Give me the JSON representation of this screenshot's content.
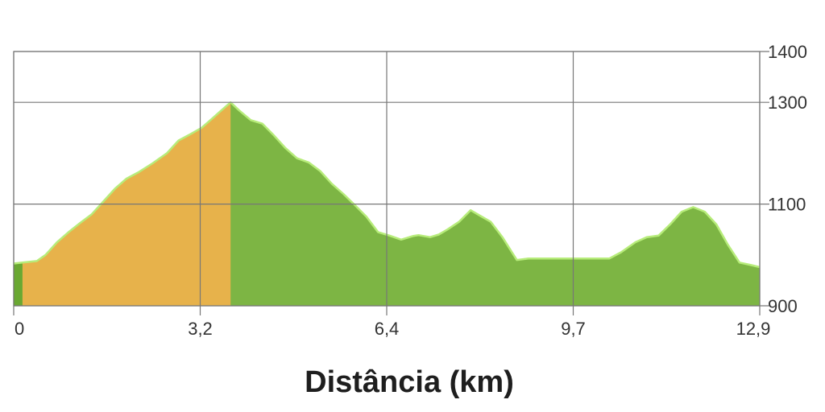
{
  "chart_data": {
    "type": "area",
    "title": "",
    "xlabel": "Distância (km)",
    "ylabel": "",
    "xlim": [
      0,
      12.9
    ],
    "ylim": [
      900,
      1400
    ],
    "x_ticks": [
      {
        "value": 0,
        "label": "0"
      },
      {
        "value": 3.225,
        "label": "3,2"
      },
      {
        "value": 6.45,
        "label": "6,4"
      },
      {
        "value": 9.675,
        "label": "9,7"
      },
      {
        "value": 12.9,
        "label": "12,9"
      }
    ],
    "y_ticks": [
      {
        "value": 900,
        "label": "900"
      },
      {
        "value": 1100,
        "label": "1100"
      },
      {
        "value": 1300,
        "label": "1300"
      },
      {
        "value": 1400,
        "label": "1400"
      }
    ],
    "grid": true,
    "colors": {
      "fill": "#7db544",
      "highlight_fill": "#e7b24b",
      "line": "#b7ec7a",
      "grid": "#777777",
      "marker": "#6aa832"
    },
    "highlight_range": [
      0.15,
      3.75
    ],
    "series": [
      {
        "x": [
          0,
          0.15,
          0.4,
          0.55,
          0.75,
          0.95,
          1.15,
          1.35,
          1.55,
          1.75,
          1.95,
          2.15,
          2.4,
          2.65,
          2.85,
          3.05,
          3.25,
          3.45,
          3.55,
          3.75,
          3.9,
          4.1,
          4.3,
          4.5,
          4.7,
          4.9,
          5.1,
          5.3,
          5.5,
          5.7,
          5.9,
          6.1,
          6.3,
          6.5,
          6.7,
          6.9,
          7.0,
          7.2,
          7.35,
          7.5,
          7.7,
          7.9,
          8.05,
          8.25,
          8.45,
          8.7,
          8.9,
          9.1,
          9.3,
          9.5,
          9.7,
          9.9,
          10.1,
          10.3,
          10.5,
          10.75,
          10.95,
          11.15,
          11.35,
          11.55,
          11.75,
          11.95,
          12.15,
          12.35,
          12.55,
          12.75,
          12.9
        ],
        "y": [
          983,
          985,
          988,
          1000,
          1025,
          1045,
          1063,
          1080,
          1105,
          1130,
          1150,
          1162,
          1180,
          1200,
          1225,
          1237,
          1250,
          1270,
          1280,
          1300,
          1284,
          1265,
          1258,
          1235,
          1210,
          1190,
          1182,
          1165,
          1140,
          1120,
          1098,
          1075,
          1045,
          1038,
          1030,
          1037,
          1039,
          1035,
          1040,
          1050,
          1065,
          1088,
          1078,
          1065,
          1035,
          990,
          993,
          993,
          993,
          993,
          993,
          993,
          993,
          993,
          1005,
          1025,
          1035,
          1038,
          1060,
          1085,
          1094,
          1085,
          1060,
          1020,
          985,
          980,
          976
        ]
      }
    ]
  }
}
